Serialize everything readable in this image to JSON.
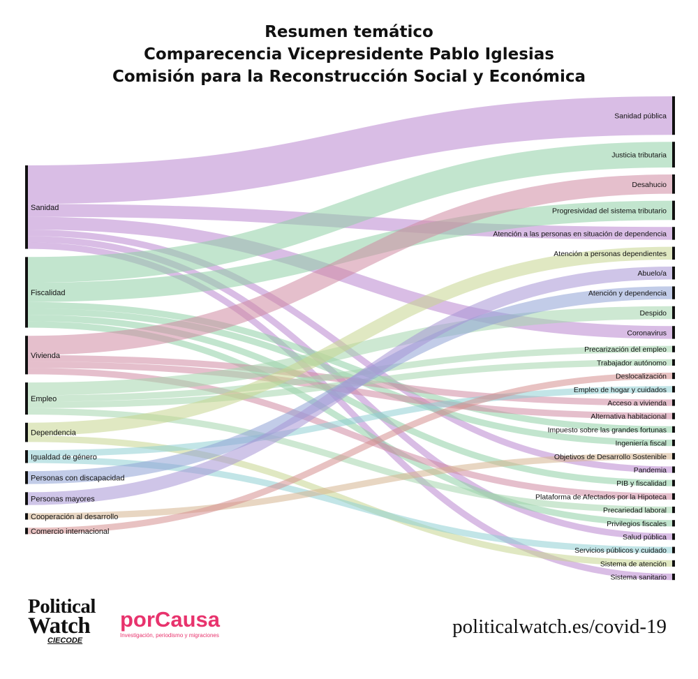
{
  "header": {
    "title_line1": "Resumen temático",
    "title_line2": "Comparecencia Vicepresidente Pablo Iglesias",
    "title_line3": "Comisión para la Reconstrucción Social y Económica"
  },
  "footer": {
    "logo_political": "Political",
    "logo_watch": "Watch",
    "logo_ciecode": "CIECODE",
    "logo_porcausa": "porCausa",
    "porcausa_tagline": "Investigación, periodismo y migraciones",
    "url": "politicalwatch.es/covid-19"
  },
  "chart_data": {
    "type": "sankey",
    "title": "Resumen temático",
    "colors": {
      "Sanidad": "#b987cf",
      "Fiscalidad": "#8fcfa5",
      "Vivienda": "#cf8ba2",
      "Empleo": "#a4d5ad",
      "Dependencia": "#c7d58f",
      "Igualdad de género": "#8fd0d3",
      "Personas con discapacidad": "#8fa3d6",
      "Personas mayores": "#a796d6",
      "Cooperación al desarrollo": "#d6b48f",
      "Comercio internacional": "#d68f8f",
      "node_bar": "#111111"
    },
    "sources": [
      "Sanidad",
      "Fiscalidad",
      "Vivienda",
      "Empleo",
      "Dependencia",
      "Igualdad de género",
      "Personas con discapacidad",
      "Personas mayores",
      "Cooperación al desarrollo",
      "Comercio internacional"
    ],
    "targets": [
      "Sanidad pública",
      "Justicia tributaria",
      "Desahucio",
      "Progresividad del sistema tributario",
      "Atención a las personas en situación de dependencia",
      "Atención a personas dependientes",
      "Abuelo/a",
      "Atención y dependencia",
      "Despido",
      "Coronavirus",
      "Precarización del empleo",
      "Trabajador autónomo",
      "Deslocalización",
      "Empleo de hogar y cuidados",
      "Acceso a vivienda",
      "Alternativa habitacional",
      "Impuesto sobre las grandes fortunas",
      "Ingeniería fiscal",
      "Objetivos de Desarrollo Sostenible",
      "Pandemia",
      "PIB y fiscalidad",
      "Plataforma de Afectados por la Hipoteca",
      "Precariedad laboral",
      "Privilegios fiscales",
      "Salud pública",
      "Servicios públicos y cuidado",
      "Sistema de atención",
      "Sistema sanitario"
    ],
    "links": [
      {
        "source": "Sanidad",
        "target": "Sanidad pública",
        "value": 6
      },
      {
        "source": "Sanidad",
        "target": "Atención a las personas en situación de dependencia",
        "value": 2
      },
      {
        "source": "Sanidad",
        "target": "Coronavirus",
        "value": 2
      },
      {
        "source": "Sanidad",
        "target": "Pandemia",
        "value": 1
      },
      {
        "source": "Sanidad",
        "target": "Salud pública",
        "value": 1
      },
      {
        "source": "Sanidad",
        "target": "Sistema sanitario",
        "value": 1
      },
      {
        "source": "Fiscalidad",
        "target": "Justicia tributaria",
        "value": 4
      },
      {
        "source": "Fiscalidad",
        "target": "Progresividad del sistema tributario",
        "value": 3
      },
      {
        "source": "Fiscalidad",
        "target": "Impuesto sobre las grandes fortunas",
        "value": 1
      },
      {
        "source": "Fiscalidad",
        "target": "Ingeniería fiscal",
        "value": 1
      },
      {
        "source": "Fiscalidad",
        "target": "PIB y fiscalidad",
        "value": 1
      },
      {
        "source": "Fiscalidad",
        "target": "Privilegios fiscales",
        "value": 1
      },
      {
        "source": "Vivienda",
        "target": "Desahucio",
        "value": 3
      },
      {
        "source": "Vivienda",
        "target": "Acceso a vivienda",
        "value": 1
      },
      {
        "source": "Vivienda",
        "target": "Alternativa habitacional",
        "value": 1
      },
      {
        "source": "Vivienda",
        "target": "Plataforma de Afectados por la Hipoteca",
        "value": 1
      },
      {
        "source": "Empleo",
        "target": "Despido",
        "value": 2
      },
      {
        "source": "Empleo",
        "target": "Precarización del empleo",
        "value": 1
      },
      {
        "source": "Empleo",
        "target": "Trabajador autónomo",
        "value": 1
      },
      {
        "source": "Empleo",
        "target": "Precariedad laboral",
        "value": 1
      },
      {
        "source": "Dependencia",
        "target": "Atención a personas dependientes",
        "value": 2
      },
      {
        "source": "Dependencia",
        "target": "Sistema de atención",
        "value": 1
      },
      {
        "source": "Igualdad de género",
        "target": "Empleo de hogar y cuidados",
        "value": 1
      },
      {
        "source": "Igualdad de género",
        "target": "Servicios públicos y cuidado",
        "value": 1
      },
      {
        "source": "Personas con discapacidad",
        "target": "Atención y dependencia",
        "value": 2
      },
      {
        "source": "Personas mayores",
        "target": "Abuelo/a",
        "value": 2
      },
      {
        "source": "Cooperación al desarrollo",
        "target": "Objetivos de Desarrollo Sostenible",
        "value": 1
      },
      {
        "source": "Comercio internacional",
        "target": "Deslocalización",
        "value": 1
      }
    ]
  }
}
